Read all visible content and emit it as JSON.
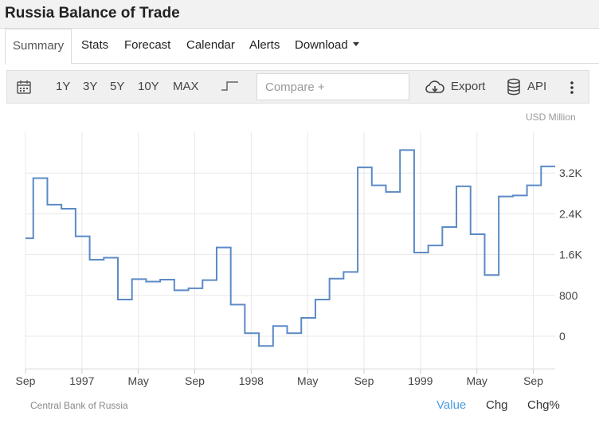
{
  "header": {
    "title": "Russia Balance of Trade"
  },
  "tabs": [
    {
      "label": "Summary"
    },
    {
      "label": "Stats"
    },
    {
      "label": "Forecast"
    },
    {
      "label": "Calendar"
    },
    {
      "label": "Alerts"
    },
    {
      "label": "Download"
    }
  ],
  "toolbar": {
    "ranges": [
      "1Y",
      "3Y",
      "5Y",
      "10Y",
      "MAX"
    ],
    "compare_placeholder": "Compare +",
    "export_label": "Export",
    "api_label": "API"
  },
  "footer": {
    "source": "Central Bank of Russia",
    "modes": [
      "Value",
      "Chg",
      "Chg%"
    ],
    "active_mode": "Value"
  },
  "colors": {
    "line": "#5b8ac6",
    "grid": "#e8e8e8",
    "accent": "#4a9ce0"
  },
  "chart_data": {
    "type": "line",
    "step": true,
    "unit_label": "USD Million",
    "y_ticks": [
      "3.2K",
      "2.4K",
      "1.6K",
      "800",
      "0"
    ],
    "y_tick_values": [
      3200,
      2400,
      1600,
      800,
      0
    ],
    "x_tick_labels": [
      "Sep",
      "1997",
      "May",
      "Sep",
      "1998",
      "May",
      "Sep",
      "1999",
      "May",
      "Sep"
    ],
    "x_tick_dates": [
      "1996-09",
      "1997-01",
      "1997-05",
      "1997-09",
      "1998-01",
      "1998-05",
      "1998-09",
      "1999-01",
      "1999-05",
      "1999-09"
    ],
    "ylim": [
      -640,
      4000
    ],
    "x": [
      "1996-09",
      "1996-10",
      "1996-11",
      "1996-12",
      "1997-01",
      "1997-02",
      "1997-03",
      "1997-04",
      "1997-05",
      "1997-06",
      "1997-07",
      "1997-08",
      "1997-09",
      "1997-10",
      "1997-11",
      "1997-12",
      "1998-01",
      "1998-02",
      "1998-03",
      "1998-04",
      "1998-05",
      "1998-06",
      "1998-07",
      "1998-08",
      "1998-09",
      "1998-10",
      "1998-11",
      "1998-12",
      "1999-01",
      "1999-02",
      "1999-03",
      "1999-04",
      "1999-05",
      "1999-06",
      "1999-07",
      "1999-08",
      "1999-09",
      "1999-10"
    ],
    "series": [
      {
        "values": [
          1920,
          3100,
          2580,
          2500,
          1960,
          1500,
          1540,
          720,
          1120,
          1070,
          1110,
          900,
          940,
          1100,
          1740,
          620,
          60,
          -190,
          200,
          60,
          360,
          720,
          1130,
          1260,
          3310,
          2960,
          2830,
          3650,
          1640,
          1780,
          2140,
          2940,
          2000,
          1200,
          2740,
          2760,
          2960,
          3330
        ]
      }
    ]
  }
}
